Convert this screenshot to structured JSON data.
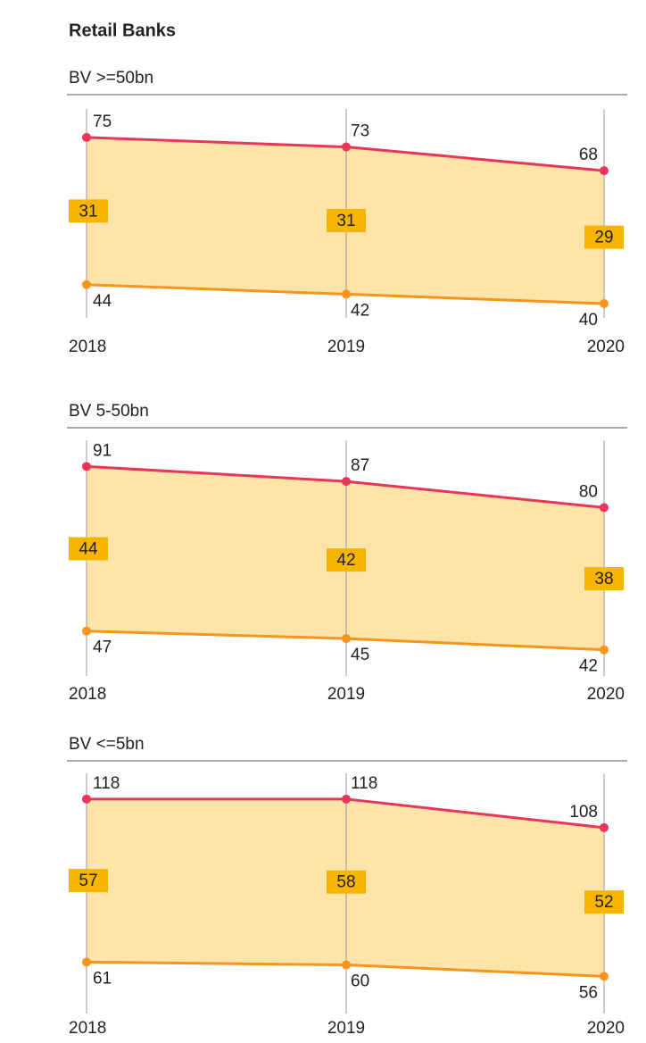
{
  "title": "Retail Banks",
  "chart_data": [
    {
      "type": "line",
      "title": "BV >=50bn",
      "categories": [
        "2018",
        "2019",
        "2020"
      ],
      "ylim": [
        37,
        81
      ],
      "band_color": "#fde4a8",
      "series": [
        {
          "color": "#e8365a",
          "values": [
            75,
            73,
            68
          ]
        },
        {
          "color": "#f7941d",
          "values": [
            44,
            42,
            40
          ]
        }
      ],
      "differences": {
        "color": "#f7b500",
        "values": [
          31,
          31,
          29
        ]
      }
    },
    {
      "type": "line",
      "title": "BV 5-50bn",
      "categories": [
        "2018",
        "2019",
        "2020"
      ],
      "ylim": [
        35,
        98
      ],
      "band_color": "#fde4a8",
      "series": [
        {
          "color": "#e8365a",
          "values": [
            91,
            87,
            80
          ]
        },
        {
          "color": "#f7941d",
          "values": [
            47,
            45,
            42
          ]
        }
      ],
      "differences": {
        "color": "#f7b500",
        "values": [
          44,
          42,
          38
        ]
      }
    },
    {
      "type": "line",
      "title": "BV <=5bn",
      "categories": [
        "2018",
        "2019",
        "2020"
      ],
      "ylim": [
        43,
        127
      ],
      "band_color": "#fde4a8",
      "series": [
        {
          "color": "#e8365a",
          "values": [
            118,
            118,
            108
          ]
        },
        {
          "color": "#f7941d",
          "values": [
            61,
            60,
            56
          ]
        }
      ],
      "differences": {
        "color": "#f7b500",
        "values": [
          57,
          58,
          52
        ]
      }
    }
  ]
}
